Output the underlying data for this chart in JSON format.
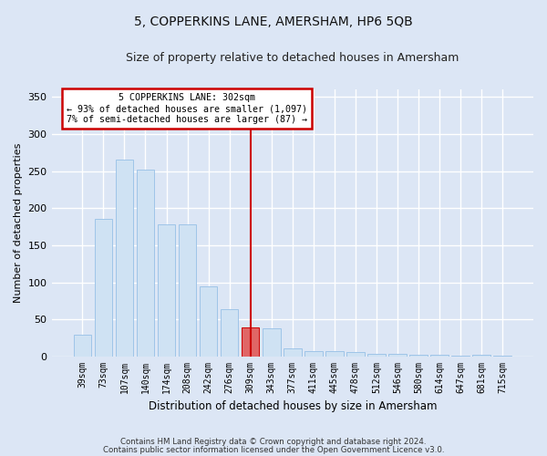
{
  "title": "5, COPPERKINS LANE, AMERSHAM, HP6 5QB",
  "subtitle": "Size of property relative to detached houses in Amersham",
  "xlabel": "Distribution of detached houses by size in Amersham",
  "ylabel": "Number of detached properties",
  "bar_labels": [
    "39sqm",
    "73sqm",
    "107sqm",
    "140sqm",
    "174sqm",
    "208sqm",
    "242sqm",
    "276sqm",
    "309sqm",
    "343sqm",
    "377sqm",
    "411sqm",
    "445sqm",
    "478sqm",
    "512sqm",
    "546sqm",
    "580sqm",
    "614sqm",
    "647sqm",
    "681sqm",
    "715sqm"
  ],
  "bar_values": [
    30,
    186,
    266,
    252,
    178,
    178,
    95,
    64,
    39,
    38,
    11,
    8,
    8,
    6,
    4,
    4,
    3,
    2,
    1,
    2,
    1
  ],
  "bar_color": "#cfe2f3",
  "bar_edge_color": "#9fc5e8",
  "highlight_bar_index": 8,
  "highlight_bar_color": "#e06666",
  "highlight_bar_edge_color": "#cc0000",
  "vline_color": "#cc0000",
  "annotation_title": "5 COPPERKINS LANE: 302sqm",
  "annotation_line1": "← 93% of detached houses are smaller (1,097)",
  "annotation_line2": "7% of semi-detached houses are larger (87) →",
  "annotation_box_edge_color": "#cc0000",
  "background_color": "#dce6f5",
  "grid_color": "#ffffff",
  "ylim": [
    0,
    360
  ],
  "yticks": [
    0,
    50,
    100,
    150,
    200,
    250,
    300,
    350
  ],
  "footer_line1": "Contains HM Land Registry data © Crown copyright and database right 2024.",
  "footer_line2": "Contains public sector information licensed under the Open Government Licence v3.0."
}
